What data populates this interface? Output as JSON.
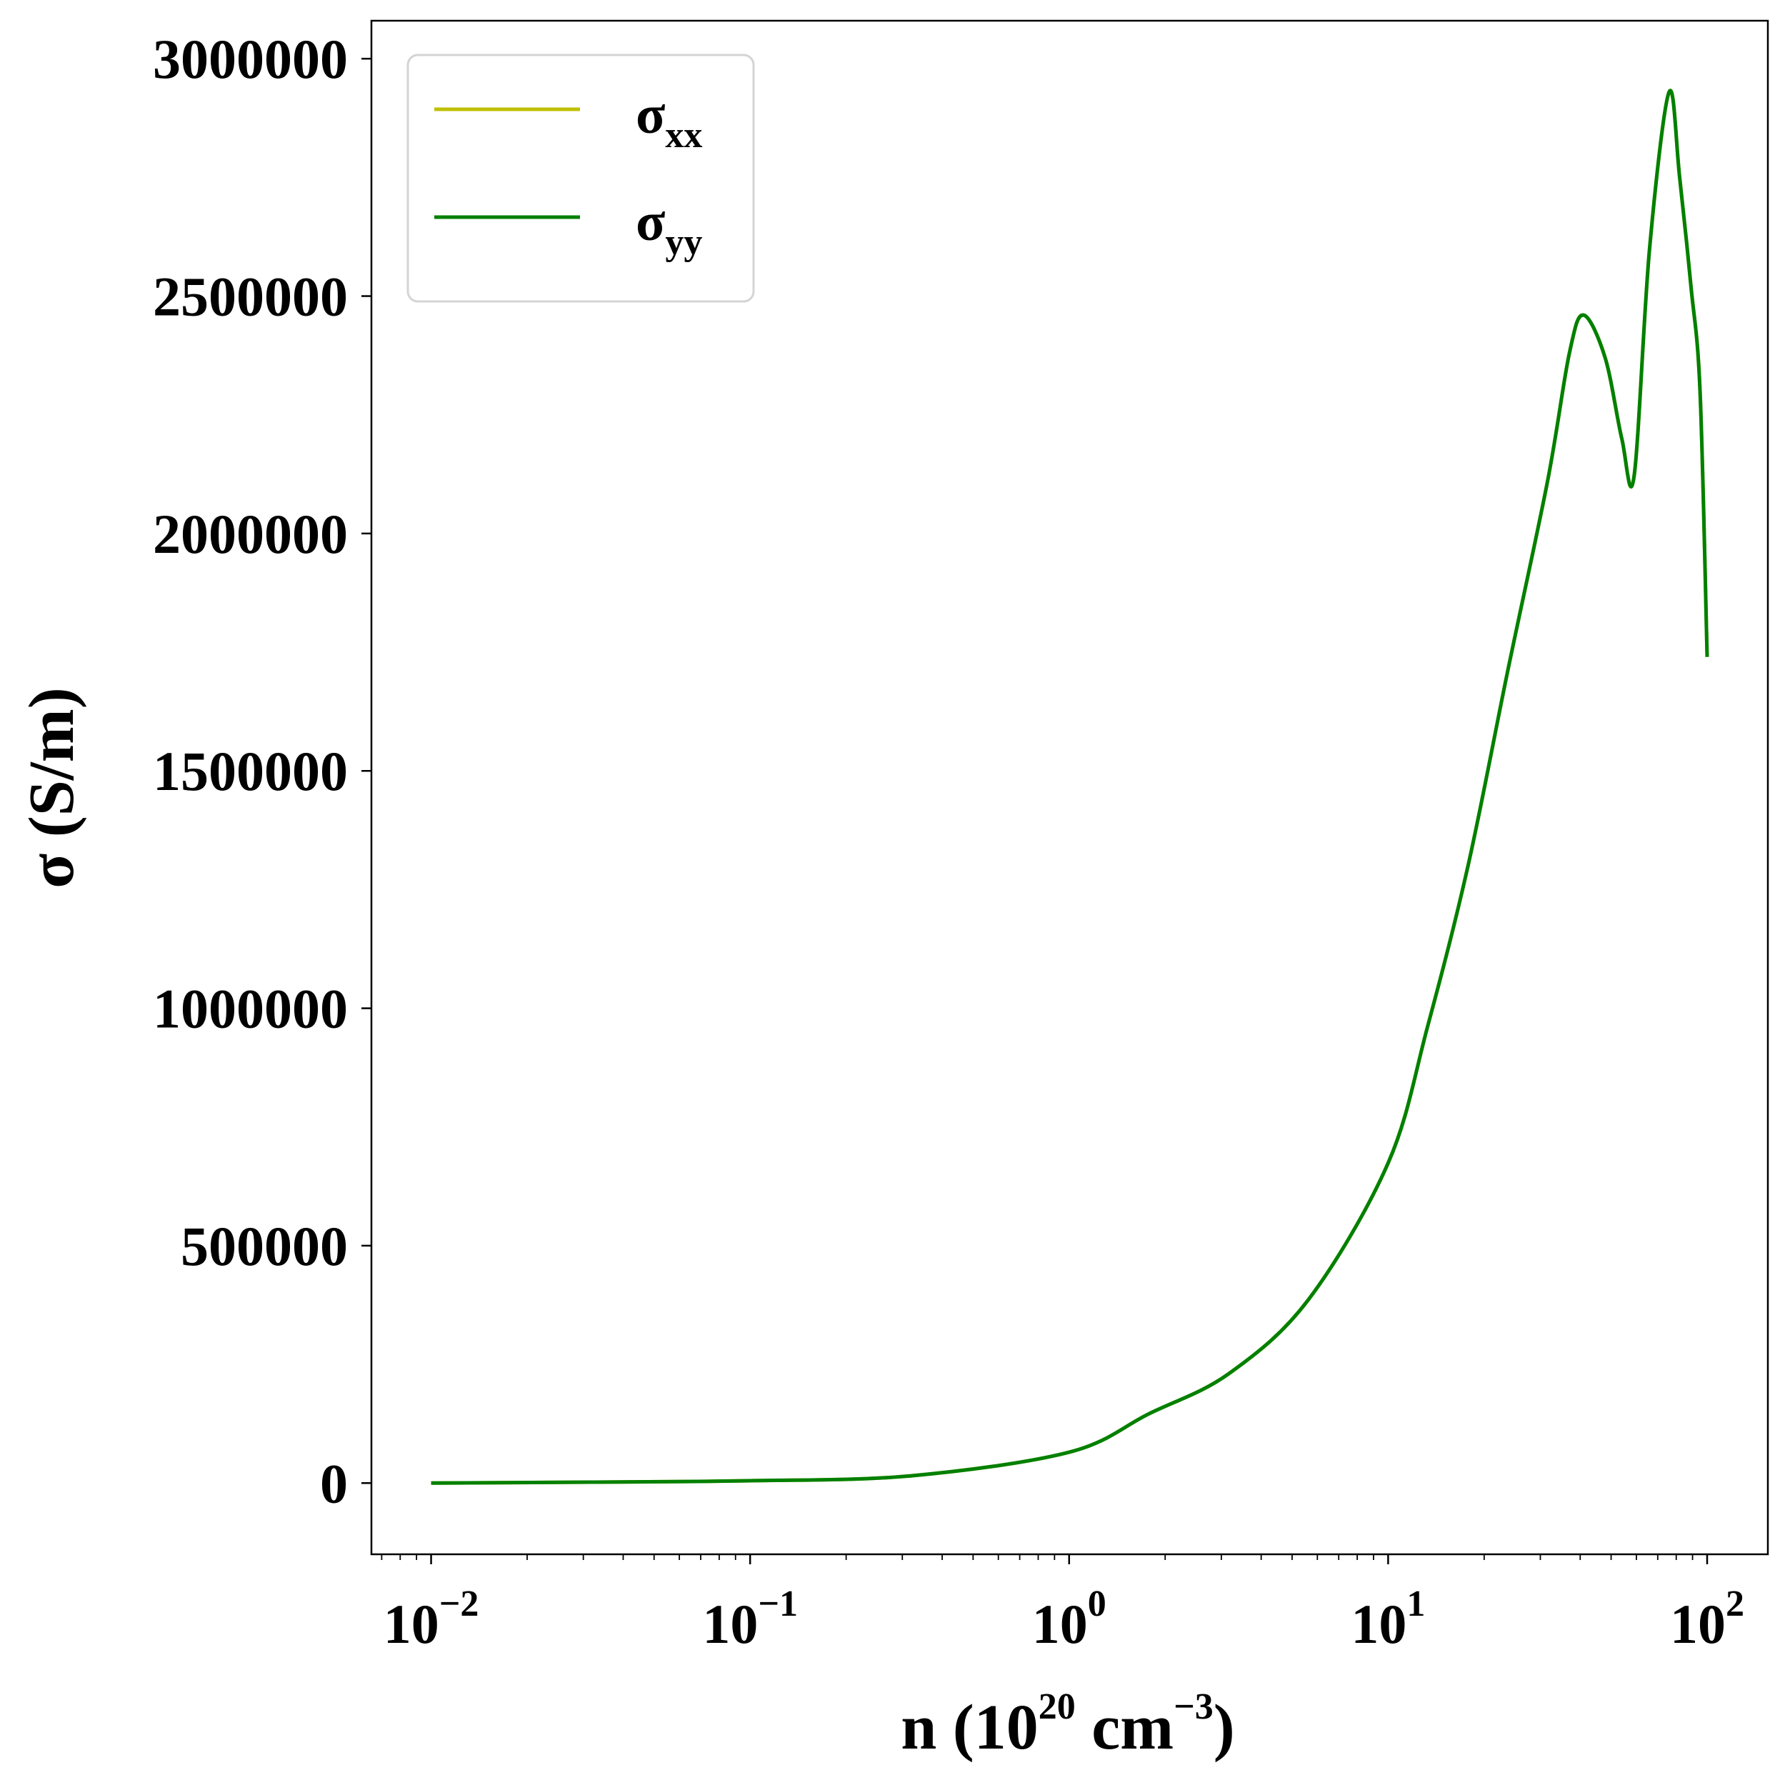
{
  "chart_data": {
    "type": "line",
    "xscale": "log",
    "xlabel": {
      "base": "n (10",
      "exp": "20",
      "unit": " cm",
      "unit_exp": "−3",
      "close": ")"
    },
    "ylabel": "σ (S/m)",
    "xlim": [
      0.0065,
      155
    ],
    "ylim": [
      -150000,
      3080000
    ],
    "xticks": [
      {
        "value": 0.01,
        "base": "10",
        "exp": "−2"
      },
      {
        "value": 0.1,
        "base": "10",
        "exp": "−1"
      },
      {
        "value": 1,
        "base": "10",
        "exp": "0"
      },
      {
        "value": 10,
        "base": "10",
        "exp": "1"
      },
      {
        "value": 100,
        "base": "10",
        "exp": "2"
      }
    ],
    "yticks": [
      {
        "value": 0,
        "label": "0"
      },
      {
        "value": 500000,
        "label": "500000"
      },
      {
        "value": 1000000,
        "label": "1000000"
      },
      {
        "value": 1500000,
        "label": "1500000"
      },
      {
        "value": 2000000,
        "label": "2000000"
      },
      {
        "value": 2500000,
        "label": "2500000"
      },
      {
        "value": 3000000,
        "label": "3000000"
      }
    ],
    "grid": false,
    "legend": {
      "placement": "top-left"
    },
    "series": [
      {
        "name": "σxx",
        "symbol": "σ",
        "sub": "xx",
        "color": "#bfbf00",
        "x": [
          0.01,
          0.0316,
          0.1,
          0.316,
          1,
          1.78,
          3.16,
          5.62,
          10,
          13.3,
          17.8,
          23.7,
          31.6,
          37,
          41,
          47.9,
          54,
          59,
          66,
          76,
          82,
          89,
          95,
          100
        ],
        "y": [
          0,
          2000,
          5000,
          15000,
          65000,
          146000,
          230000,
          386000,
          674000,
          962000,
          1300000,
          1710000,
          2110000,
          2380000,
          2460000,
          2370000,
          2200000,
          2120000,
          2600000,
          2930000,
          2750000,
          2520000,
          2300000,
          1740000
        ]
      },
      {
        "name": "σyy",
        "symbol": "σ",
        "sub": "yy",
        "color": "#008000",
        "x": [
          0.01,
          0.0316,
          0.1,
          0.316,
          1,
          1.78,
          3.16,
          5.62,
          10,
          13.3,
          17.8,
          23.7,
          31.6,
          37,
          41,
          47.9,
          54,
          59,
          66,
          76,
          82,
          89,
          95,
          100
        ],
        "y": [
          0,
          2000,
          5000,
          15000,
          65000,
          146000,
          230000,
          386000,
          674000,
          962000,
          1300000,
          1710000,
          2110000,
          2380000,
          2460000,
          2370000,
          2200000,
          2120000,
          2600000,
          2930000,
          2750000,
          2520000,
          2300000,
          1740000
        ]
      }
    ]
  }
}
